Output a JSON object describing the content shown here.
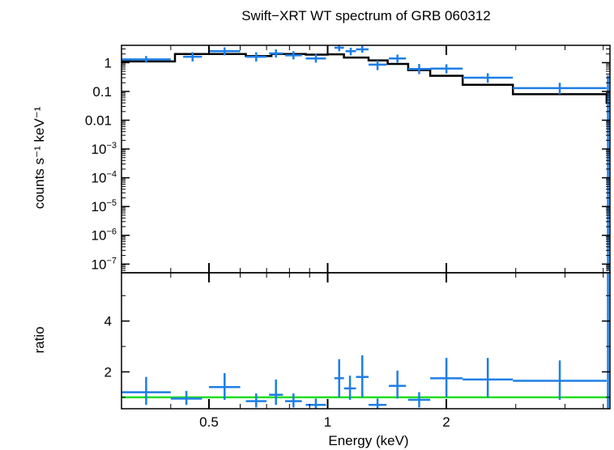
{
  "chart_data": {
    "type": "scatter",
    "title": "Swift−XRT WT spectrum of GRB 060312",
    "xlabel": "Energy (keV)",
    "xscale": "log",
    "xlim": [
      0.3,
      5.2
    ],
    "x_ticks": [
      {
        "value": 0.5,
        "label": "0.5"
      },
      {
        "value": 1,
        "label": "1"
      },
      {
        "value": 2,
        "label": "2"
      }
    ],
    "colors": {
      "data": "#1e7ee6",
      "model": "#000000",
      "unity": "#22dd22",
      "frame": "#000000"
    },
    "panels": [
      {
        "name": "spectrum",
        "ylabel": "counts s⁻¹ keV⁻¹",
        "yscale": "log",
        "ylim": [
          5e-08,
          4
        ],
        "y_ticks": [
          {
            "value": 1,
            "base": "1",
            "exp": ""
          },
          {
            "value": 0.1,
            "base": "0.1",
            "exp": ""
          },
          {
            "value": 0.01,
            "base": "0.01",
            "exp": ""
          },
          {
            "value": 0.001,
            "base": "10",
            "exp": "−3"
          },
          {
            "value": 0.0001,
            "base": "10",
            "exp": "−4"
          },
          {
            "value": 1e-05,
            "base": "10",
            "exp": "−5"
          },
          {
            "value": 1e-06,
            "base": "10",
            "exp": "−6"
          },
          {
            "value": 1e-07,
            "base": "10",
            "exp": "−7"
          }
        ],
        "data_points": [
          {
            "x0": 0.3,
            "x1": 0.4,
            "y": 1.3,
            "ylo": 1.0,
            "yhi": 1.7
          },
          {
            "x0": 0.43,
            "x1": 0.48,
            "y": 1.6,
            "ylo": 1.1,
            "yhi": 2.3
          },
          {
            "x0": 0.5,
            "x1": 0.6,
            "y": 2.5,
            "ylo": 1.8,
            "yhi": 3.4
          },
          {
            "x0": 0.62,
            "x1": 0.7,
            "y": 1.6,
            "ylo": 1.1,
            "yhi": 2.3
          },
          {
            "x0": 0.71,
            "x1": 0.77,
            "y": 2.1,
            "ylo": 1.5,
            "yhi": 2.9
          },
          {
            "x0": 0.78,
            "x1": 0.86,
            "y": 1.8,
            "ylo": 1.3,
            "yhi": 2.5
          },
          {
            "x0": 0.88,
            "x1": 0.99,
            "y": 1.4,
            "ylo": 1.0,
            "yhi": 2.0
          },
          {
            "x0": 1.04,
            "x1": 1.1,
            "y": 3.3,
            "ylo": 2.5,
            "yhi": 4.3
          },
          {
            "x0": 1.11,
            "x1": 1.18,
            "y": 2.5,
            "ylo": 1.8,
            "yhi": 3.3
          },
          {
            "x0": 1.18,
            "x1": 1.27,
            "y": 2.9,
            "ylo": 2.2,
            "yhi": 3.8
          },
          {
            "x0": 1.27,
            "x1": 1.41,
            "y": 0.85,
            "ylo": 0.55,
            "yhi": 1.2
          },
          {
            "x0": 1.43,
            "x1": 1.58,
            "y": 1.4,
            "ylo": 1.0,
            "yhi": 1.9
          },
          {
            "x0": 1.6,
            "x1": 1.82,
            "y": 0.6,
            "ylo": 0.4,
            "yhi": 0.9
          },
          {
            "x0": 1.82,
            "x1": 2.2,
            "y": 0.62,
            "ylo": 0.42,
            "yhi": 0.88
          },
          {
            "x0": 2.2,
            "x1": 2.95,
            "y": 0.3,
            "ylo": 0.2,
            "yhi": 0.43
          },
          {
            "x0": 2.95,
            "x1": 5.1,
            "y": 0.13,
            "ylo": 0.08,
            "yhi": 0.2
          },
          {
            "x0": 5.13,
            "x1": 5.15,
            "y": 0.2,
            "ylo": 6e-08,
            "yhi": 0.36
          }
        ],
        "model_steps": [
          {
            "x0": 0.3,
            "x1": 0.41,
            "y": 1.1
          },
          {
            "x0": 0.41,
            "x1": 0.5,
            "y": 2.0
          },
          {
            "x0": 0.5,
            "x1": 0.62,
            "y": 2.0
          },
          {
            "x0": 0.62,
            "x1": 0.72,
            "y": 1.7
          },
          {
            "x0": 0.72,
            "x1": 0.88,
            "y": 2.0
          },
          {
            "x0": 0.88,
            "x1": 1.0,
            "y": 1.9
          },
          {
            "x0": 1.0,
            "x1": 1.1,
            "y": 1.95
          },
          {
            "x0": 1.1,
            "x1": 1.27,
            "y": 1.5
          },
          {
            "x0": 1.27,
            "x1": 1.42,
            "y": 1.2
          },
          {
            "x0": 1.42,
            "x1": 1.6,
            "y": 0.9
          },
          {
            "x0": 1.6,
            "x1": 1.82,
            "y": 0.55
          },
          {
            "x0": 1.82,
            "x1": 2.2,
            "y": 0.35
          },
          {
            "x0": 2.2,
            "x1": 2.95,
            "y": 0.17
          },
          {
            "x0": 2.95,
            "x1": 5.1,
            "y": 0.08
          },
          {
            "x0": 5.1,
            "x1": 5.2,
            "y": 0.04
          }
        ]
      },
      {
        "name": "ratio",
        "ylabel": "ratio",
        "yscale": "linear",
        "ylim": [
          0.55,
          5.9
        ],
        "y_ticks": [
          {
            "value": 2,
            "base": "2",
            "exp": ""
          },
          {
            "value": 4,
            "base": "4",
            "exp": ""
          }
        ],
        "unity_line": 1,
        "data_points": [
          {
            "x0": 0.3,
            "x1": 0.4,
            "y": 1.2,
            "ylo": 0.7,
            "yhi": 1.8
          },
          {
            "x0": 0.4,
            "x1": 0.48,
            "y": 0.95,
            "ylo": 0.7,
            "yhi": 1.25
          },
          {
            "x0": 0.5,
            "x1": 0.6,
            "y": 1.4,
            "ylo": 0.9,
            "yhi": 1.95
          },
          {
            "x0": 0.62,
            "x1": 0.7,
            "y": 0.85,
            "ylo": 0.6,
            "yhi": 1.15
          },
          {
            "x0": 0.71,
            "x1": 0.77,
            "y": 1.1,
            "ylo": 0.7,
            "yhi": 1.7
          },
          {
            "x0": 0.78,
            "x1": 0.86,
            "y": 0.85,
            "ylo": 0.6,
            "yhi": 1.15
          },
          {
            "x0": 0.88,
            "x1": 0.99,
            "y": 0.7,
            "ylo": 0.55,
            "yhi": 0.95
          },
          {
            "x0": 1.04,
            "x1": 1.1,
            "y": 1.75,
            "ylo": 1.0,
            "yhi": 2.5
          },
          {
            "x0": 1.1,
            "x1": 1.18,
            "y": 1.35,
            "ylo": 0.9,
            "yhi": 1.85
          },
          {
            "x0": 1.18,
            "x1": 1.27,
            "y": 1.8,
            "ylo": 1.0,
            "yhi": 2.65
          },
          {
            "x0": 1.27,
            "x1": 1.41,
            "y": 0.7,
            "ylo": 0.55,
            "yhi": 0.95
          },
          {
            "x0": 1.43,
            "x1": 1.58,
            "y": 1.45,
            "ylo": 0.95,
            "yhi": 2.05
          },
          {
            "x0": 1.6,
            "x1": 1.82,
            "y": 0.9,
            "ylo": 0.6,
            "yhi": 1.2
          },
          {
            "x0": 1.82,
            "x1": 2.2,
            "y": 1.75,
            "ylo": 1.0,
            "yhi": 2.55
          },
          {
            "x0": 2.2,
            "x1": 2.95,
            "y": 1.7,
            "ylo": 1.0,
            "yhi": 2.55
          },
          {
            "x0": 2.95,
            "x1": 5.1,
            "y": 1.65,
            "ylo": 0.9,
            "yhi": 2.45
          },
          {
            "x0": 5.13,
            "x1": 5.15,
            "y": 2.5,
            "ylo": 0.55,
            "yhi": 5.9
          }
        ]
      }
    ]
  }
}
